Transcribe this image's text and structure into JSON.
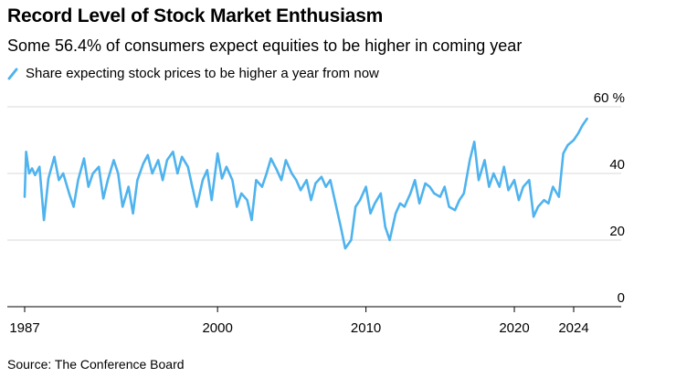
{
  "title": "Record Level of Stock Market Enthusiasm",
  "subtitle": "Some 56.4% of consumers expect equities to be higher in coming year",
  "legend_label": "Share expecting stock prices to be higher a year from now",
  "source": "Source: The Conference Board",
  "colors": {
    "line": "#4FB3EE",
    "grid": "#D9D9D9",
    "axis": "#000000"
  },
  "chart_data": {
    "type": "line",
    "title": "Record Level of Stock Market Enthusiasm",
    "subtitle": "Some 56.4% of consumers expect equities to be higher in coming year",
    "xlabel": "",
    "ylabel": "",
    "xlim": [
      1987,
      2025.5
    ],
    "ylim": [
      0,
      60
    ],
    "y_unit_label": "60 %",
    "y_ticks": [
      0,
      20,
      40,
      60
    ],
    "y_tick_labels": [
      "0",
      "20",
      "40",
      "60 %"
    ],
    "x_ticks": [
      1987,
      2000,
      2010,
      2020,
      2024
    ],
    "x_tick_labels": [
      "1987",
      "2000",
      "2010",
      "2020",
      "2024"
    ],
    "series": [
      {
        "name": "Share expecting stock prices to be higher a year from now",
        "x": [
          1987.0,
          1987.1,
          1987.3,
          1987.5,
          1987.7,
          1988.0,
          1988.3,
          1988.6,
          1989.0,
          1989.3,
          1989.6,
          1990.0,
          1990.3,
          1990.6,
          1991.0,
          1991.3,
          1991.6,
          1992.0,
          1992.3,
          1992.6,
          1993.0,
          1993.3,
          1993.6,
          1994.0,
          1994.3,
          1994.6,
          1995.0,
          1995.3,
          1995.6,
          1996.0,
          1996.3,
          1996.6,
          1997.0,
          1997.3,
          1997.6,
          1998.0,
          1998.3,
          1998.6,
          1999.0,
          1999.3,
          1999.6,
          2000.0,
          2000.3,
          2000.6,
          2001.0,
          2001.3,
          2001.6,
          2002.0,
          2002.3,
          2002.6,
          2003.0,
          2003.3,
          2003.6,
          2004.0,
          2004.3,
          2004.6,
          2005.0,
          2005.3,
          2005.6,
          2006.0,
          2006.3,
          2006.6,
          2007.0,
          2007.3,
          2007.6,
          2008.0,
          2008.3,
          2008.6,
          2009.0,
          2009.3,
          2009.6,
          2010.0,
          2010.3,
          2010.6,
          2011.0,
          2011.3,
          2011.6,
          2012.0,
          2012.3,
          2012.6,
          2013.0,
          2013.3,
          2013.6,
          2014.0,
          2014.3,
          2014.6,
          2015.0,
          2015.3,
          2015.6,
          2016.0,
          2016.3,
          2016.6,
          2017.0,
          2017.3,
          2017.6,
          2018.0,
          2018.3,
          2018.6,
          2019.0,
          2019.3,
          2019.6,
          2020.0,
          2020.3,
          2020.6,
          2021.0,
          2021.3,
          2021.6,
          2022.0,
          2022.3,
          2022.6,
          2023.0,
          2023.3,
          2023.6,
          2024.0,
          2024.3,
          2024.6,
          2024.9
        ],
        "values": [
          33.0,
          46.5,
          40.0,
          41.5,
          39.5,
          42.0,
          26.0,
          38.5,
          45.0,
          38.0,
          40.0,
          34.0,
          30.0,
          38.0,
          44.5,
          36.0,
          40.0,
          42.0,
          32.5,
          38.0,
          44.0,
          40.0,
          30.0,
          36.0,
          28.0,
          38.0,
          43.0,
          45.5,
          40.0,
          44.0,
          38.0,
          44.0,
          46.5,
          40.0,
          45.0,
          42.0,
          36.0,
          30.0,
          38.0,
          41.0,
          32.0,
          46.0,
          38.5,
          42.0,
          38.0,
          30.0,
          34.0,
          32.0,
          26.0,
          38.0,
          36.0,
          40.0,
          44.5,
          41.0,
          38.0,
          44.0,
          40.0,
          38.0,
          35.0,
          38.0,
          32.0,
          37.0,
          39.0,
          36.0,
          38.0,
          30.0,
          24.0,
          17.5,
          20.0,
          30.0,
          32.0,
          36.0,
          28.0,
          31.0,
          34.0,
          24.0,
          20.0,
          28.0,
          31.0,
          30.0,
          34.0,
          38.0,
          31.0,
          37.0,
          36.0,
          34.0,
          33.0,
          36.0,
          30.0,
          29.0,
          32.0,
          34.0,
          44.0,
          49.5,
          38.0,
          44.0,
          36.0,
          40.0,
          36.0,
          42.0,
          35.0,
          38.0,
          32.0,
          36.0,
          38.0,
          27.0,
          30.0,
          32.0,
          31.0,
          36.0,
          33.0,
          46.0,
          48.5,
          50.0,
          52.0,
          54.5,
          56.4
        ]
      }
    ]
  }
}
